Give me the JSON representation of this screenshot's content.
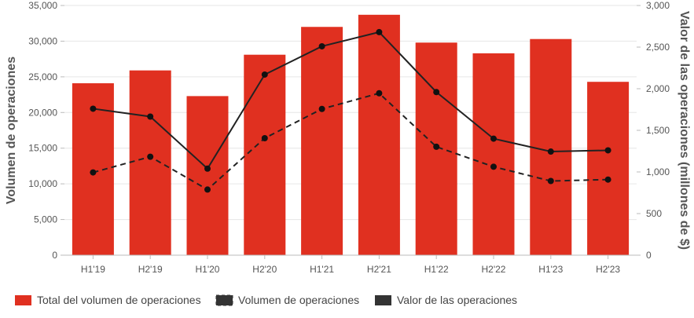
{
  "chart_data": {
    "type": "bar",
    "categories": [
      "H1'19",
      "H2'19",
      "H1'20",
      "H2'20",
      "H1'21",
      "H2'21",
      "H1'22",
      "H2'22",
      "H1'23",
      "H2'23"
    ],
    "series": [
      {
        "name": "Total del volumen de operaciones",
        "type": "bar",
        "axis": "left",
        "color": "#e03020",
        "values": [
          24100,
          25900,
          22300,
          28100,
          32000,
          33700,
          29800,
          28300,
          30300,
          24300
        ]
      },
      {
        "name": "Volumen de operaciones",
        "type": "line",
        "style": "dashed",
        "axis": "left",
        "color": "#222222",
        "values": [
          11600,
          13800,
          9200,
          16400,
          20500,
          22700,
          15200,
          12400,
          10400,
          10600
        ]
      },
      {
        "name": "Valor de las operaciones",
        "type": "line",
        "style": "solid",
        "axis": "right",
        "color": "#222222",
        "values": [
          1760,
          1665,
          1040,
          2170,
          2510,
          2680,
          1960,
          1400,
          1245,
          1260
        ]
      }
    ],
    "ylabel": "Volumen de operaciones",
    "y2label": "Valor de las operaciones (millones de $)",
    "ylim": [
      0,
      35000
    ],
    "y2lim": [
      0,
      3000
    ],
    "yticks": [
      "0",
      "5,000",
      "10,000",
      "15,000",
      "20,000",
      "25,000",
      "30,000",
      "35,000"
    ],
    "y2ticks": [
      "0",
      "500",
      "1,000",
      "1,500",
      "2,000",
      "2,500",
      "3,000"
    ],
    "grid": true,
    "legend_position": "bottom-left"
  }
}
